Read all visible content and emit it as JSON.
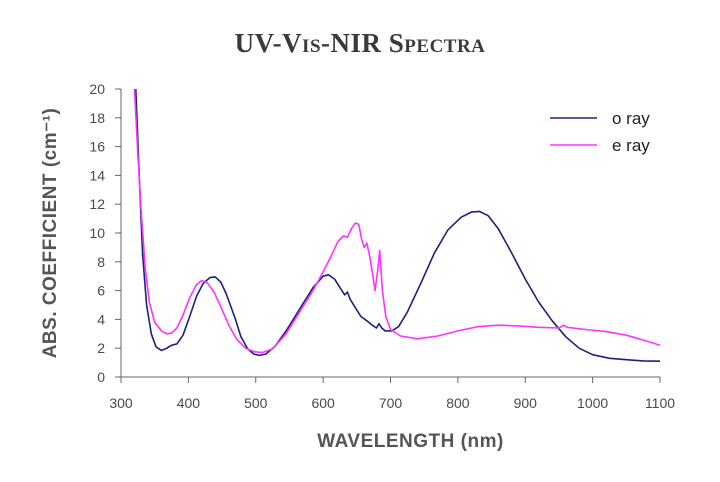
{
  "chart_data": {
    "type": "line",
    "title": "UV-Vis-NIR Spectra",
    "xlabel": "WAVELENGTH (nm)",
    "ylabel": "ABS. COEFFICIENT (cm⁻¹)",
    "xlim": [
      300,
      1100
    ],
    "ylim": [
      0,
      20
    ],
    "xticks": [
      300,
      400,
      500,
      600,
      700,
      800,
      900,
      1000,
      1100
    ],
    "yticks": [
      0,
      2,
      4,
      6,
      8,
      10,
      12,
      14,
      16,
      18,
      20
    ],
    "grid": false,
    "legend_position": "top-right",
    "series": [
      {
        "name": "o ray",
        "color": "#1a237e",
        "points": [
          [
            322,
            20
          ],
          [
            327,
            14
          ],
          [
            332,
            8.5
          ],
          [
            338,
            5
          ],
          [
            345,
            3
          ],
          [
            352,
            2.1
          ],
          [
            360,
            1.85
          ],
          [
            368,
            2.0
          ],
          [
            375,
            2.2
          ],
          [
            383,
            2.3
          ],
          [
            392,
            2.9
          ],
          [
            402,
            4.2
          ],
          [
            412,
            5.6
          ],
          [
            422,
            6.5
          ],
          [
            432,
            6.9
          ],
          [
            440,
            6.95
          ],
          [
            448,
            6.6
          ],
          [
            456,
            5.8
          ],
          [
            463,
            4.9
          ],
          [
            470,
            4.0
          ],
          [
            478,
            2.8
          ],
          [
            488,
            1.95
          ],
          [
            497,
            1.6
          ],
          [
            505,
            1.5
          ],
          [
            515,
            1.6
          ],
          [
            528,
            2.1
          ],
          [
            545,
            3.2
          ],
          [
            565,
            4.7
          ],
          [
            585,
            6.2
          ],
          [
            600,
            7.0
          ],
          [
            608,
            7.1
          ],
          [
            617,
            6.8
          ],
          [
            625,
            6.2
          ],
          [
            632,
            5.7
          ],
          [
            636,
            5.9
          ],
          [
            640,
            5.4
          ],
          [
            648,
            4.8
          ],
          [
            656,
            4.2
          ],
          [
            665,
            3.9
          ],
          [
            673,
            3.6
          ],
          [
            679,
            3.4
          ],
          [
            683,
            3.7
          ],
          [
            687,
            3.4
          ],
          [
            692,
            3.2
          ],
          [
            702,
            3.2
          ],
          [
            712,
            3.5
          ],
          [
            725,
            4.5
          ],
          [
            745,
            6.5
          ],
          [
            765,
            8.6
          ],
          [
            785,
            10.2
          ],
          [
            805,
            11.1
          ],
          [
            820,
            11.45
          ],
          [
            832,
            11.5
          ],
          [
            845,
            11.2
          ],
          [
            860,
            10.3
          ],
          [
            880,
            8.6
          ],
          [
            900,
            6.8
          ],
          [
            920,
            5.2
          ],
          [
            940,
            3.9
          ],
          [
            960,
            2.8
          ],
          [
            980,
            2.0
          ],
          [
            1000,
            1.55
          ],
          [
            1025,
            1.3
          ],
          [
            1050,
            1.2
          ],
          [
            1075,
            1.12
          ],
          [
            1100,
            1.1
          ]
        ]
      },
      {
        "name": "e ray",
        "color": "#ff33ff",
        "points": [
          [
            320,
            20
          ],
          [
            325,
            15.5
          ],
          [
            330,
            11.5
          ],
          [
            336,
            7.5
          ],
          [
            342,
            5.2
          ],
          [
            350,
            3.8
          ],
          [
            360,
            3.2
          ],
          [
            368,
            3.0
          ],
          [
            375,
            3.05
          ],
          [
            383,
            3.4
          ],
          [
            392,
            4.3
          ],
          [
            402,
            5.5
          ],
          [
            412,
            6.4
          ],
          [
            420,
            6.7
          ],
          [
            428,
            6.55
          ],
          [
            438,
            5.9
          ],
          [
            448,
            4.9
          ],
          [
            460,
            3.6
          ],
          [
            472,
            2.6
          ],
          [
            485,
            2.0
          ],
          [
            498,
            1.75
          ],
          [
            510,
            1.7
          ],
          [
            525,
            1.95
          ],
          [
            545,
            3.0
          ],
          [
            565,
            4.5
          ],
          [
            585,
            6.0
          ],
          [
            600,
            7.3
          ],
          [
            612,
            8.4
          ],
          [
            622,
            9.4
          ],
          [
            630,
            9.8
          ],
          [
            636,
            9.7
          ],
          [
            642,
            10.3
          ],
          [
            648,
            10.7
          ],
          [
            653,
            10.6
          ],
          [
            657,
            9.6
          ],
          [
            661,
            9.0
          ],
          [
            665,
            9.3
          ],
          [
            669,
            8.4
          ],
          [
            673,
            7.3
          ],
          [
            677,
            6.0
          ],
          [
            681,
            7.4
          ],
          [
            684,
            8.8
          ],
          [
            688,
            6.0
          ],
          [
            693,
            4.2
          ],
          [
            700,
            3.3
          ],
          [
            715,
            2.85
          ],
          [
            740,
            2.65
          ],
          [
            770,
            2.85
          ],
          [
            800,
            3.2
          ],
          [
            830,
            3.5
          ],
          [
            860,
            3.6
          ],
          [
            890,
            3.55
          ],
          [
            920,
            3.45
          ],
          [
            950,
            3.4
          ],
          [
            957,
            3.6
          ],
          [
            962,
            3.45
          ],
          [
            990,
            3.3
          ],
          [
            1020,
            3.15
          ],
          [
            1050,
            2.9
          ],
          [
            1080,
            2.5
          ],
          [
            1100,
            2.2
          ]
        ]
      }
    ]
  }
}
